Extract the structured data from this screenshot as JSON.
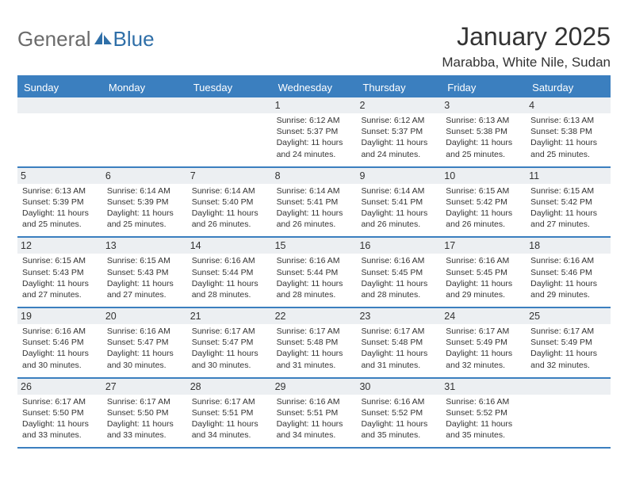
{
  "logo": {
    "gray": "General",
    "blue": "Blue"
  },
  "title": "January 2025",
  "location": "Marabba, White Nile, Sudan",
  "colors": {
    "header_bg": "#3b7fbf",
    "header_text": "#ffffff",
    "daynum_bg": "#eceff2",
    "text": "#333333",
    "logo_gray": "#6b6b6b",
    "logo_blue": "#2f6fa8"
  },
  "weekdays": [
    "Sunday",
    "Monday",
    "Tuesday",
    "Wednesday",
    "Thursday",
    "Friday",
    "Saturday"
  ],
  "weeks": [
    [
      null,
      null,
      null,
      {
        "n": "1",
        "sr": "6:12 AM",
        "ss": "5:37 PM",
        "dl": "11 hours and 24 minutes."
      },
      {
        "n": "2",
        "sr": "6:12 AM",
        "ss": "5:37 PM",
        "dl": "11 hours and 24 minutes."
      },
      {
        "n": "3",
        "sr": "6:13 AM",
        "ss": "5:38 PM",
        "dl": "11 hours and 25 minutes."
      },
      {
        "n": "4",
        "sr": "6:13 AM",
        "ss": "5:38 PM",
        "dl": "11 hours and 25 minutes."
      }
    ],
    [
      {
        "n": "5",
        "sr": "6:13 AM",
        "ss": "5:39 PM",
        "dl": "11 hours and 25 minutes."
      },
      {
        "n": "6",
        "sr": "6:14 AM",
        "ss": "5:39 PM",
        "dl": "11 hours and 25 minutes."
      },
      {
        "n": "7",
        "sr": "6:14 AM",
        "ss": "5:40 PM",
        "dl": "11 hours and 26 minutes."
      },
      {
        "n": "8",
        "sr": "6:14 AM",
        "ss": "5:41 PM",
        "dl": "11 hours and 26 minutes."
      },
      {
        "n": "9",
        "sr": "6:14 AM",
        "ss": "5:41 PM",
        "dl": "11 hours and 26 minutes."
      },
      {
        "n": "10",
        "sr": "6:15 AM",
        "ss": "5:42 PM",
        "dl": "11 hours and 26 minutes."
      },
      {
        "n": "11",
        "sr": "6:15 AM",
        "ss": "5:42 PM",
        "dl": "11 hours and 27 minutes."
      }
    ],
    [
      {
        "n": "12",
        "sr": "6:15 AM",
        "ss": "5:43 PM",
        "dl": "11 hours and 27 minutes."
      },
      {
        "n": "13",
        "sr": "6:15 AM",
        "ss": "5:43 PM",
        "dl": "11 hours and 27 minutes."
      },
      {
        "n": "14",
        "sr": "6:16 AM",
        "ss": "5:44 PM",
        "dl": "11 hours and 28 minutes."
      },
      {
        "n": "15",
        "sr": "6:16 AM",
        "ss": "5:44 PM",
        "dl": "11 hours and 28 minutes."
      },
      {
        "n": "16",
        "sr": "6:16 AM",
        "ss": "5:45 PM",
        "dl": "11 hours and 28 minutes."
      },
      {
        "n": "17",
        "sr": "6:16 AM",
        "ss": "5:45 PM",
        "dl": "11 hours and 29 minutes."
      },
      {
        "n": "18",
        "sr": "6:16 AM",
        "ss": "5:46 PM",
        "dl": "11 hours and 29 minutes."
      }
    ],
    [
      {
        "n": "19",
        "sr": "6:16 AM",
        "ss": "5:46 PM",
        "dl": "11 hours and 30 minutes."
      },
      {
        "n": "20",
        "sr": "6:16 AM",
        "ss": "5:47 PM",
        "dl": "11 hours and 30 minutes."
      },
      {
        "n": "21",
        "sr": "6:17 AM",
        "ss": "5:47 PM",
        "dl": "11 hours and 30 minutes."
      },
      {
        "n": "22",
        "sr": "6:17 AM",
        "ss": "5:48 PM",
        "dl": "11 hours and 31 minutes."
      },
      {
        "n": "23",
        "sr": "6:17 AM",
        "ss": "5:48 PM",
        "dl": "11 hours and 31 minutes."
      },
      {
        "n": "24",
        "sr": "6:17 AM",
        "ss": "5:49 PM",
        "dl": "11 hours and 32 minutes."
      },
      {
        "n": "25",
        "sr": "6:17 AM",
        "ss": "5:49 PM",
        "dl": "11 hours and 32 minutes."
      }
    ],
    [
      {
        "n": "26",
        "sr": "6:17 AM",
        "ss": "5:50 PM",
        "dl": "11 hours and 33 minutes."
      },
      {
        "n": "27",
        "sr": "6:17 AM",
        "ss": "5:50 PM",
        "dl": "11 hours and 33 minutes."
      },
      {
        "n": "28",
        "sr": "6:17 AM",
        "ss": "5:51 PM",
        "dl": "11 hours and 34 minutes."
      },
      {
        "n": "29",
        "sr": "6:16 AM",
        "ss": "5:51 PM",
        "dl": "11 hours and 34 minutes."
      },
      {
        "n": "30",
        "sr": "6:16 AM",
        "ss": "5:52 PM",
        "dl": "11 hours and 35 minutes."
      },
      {
        "n": "31",
        "sr": "6:16 AM",
        "ss": "5:52 PM",
        "dl": "11 hours and 35 minutes."
      },
      null
    ]
  ],
  "labels": {
    "sunrise": "Sunrise: ",
    "sunset": "Sunset: ",
    "daylight": "Daylight: "
  }
}
